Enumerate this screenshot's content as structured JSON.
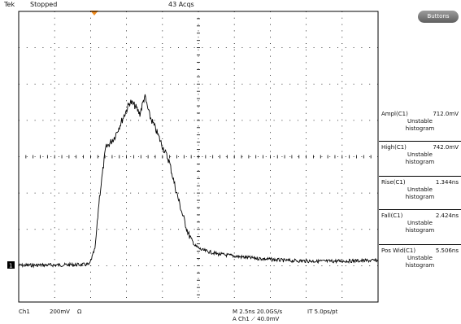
{
  "header": {
    "brand": "Tek",
    "status": "Stopped",
    "acquisitions": "43 Acqs",
    "buttons_label": "Buttons"
  },
  "colors": {
    "trigger_marker": "#f08a1c",
    "trace": "#000000",
    "graticule": "#000000"
  },
  "measurements": [
    {
      "label": "Ampl(C1)",
      "value": "712.0mV",
      "status": "Unstable",
      "note": "histogram"
    },
    {
      "label": "High(C1)",
      "value": "742.0mV",
      "status": "Unstable",
      "note": "histogram"
    },
    {
      "label": "Rise(C1)",
      "value": "1.344ns",
      "status": "Unstable",
      "note": "histogram"
    },
    {
      "label": "Fall(C1)",
      "value": "2.424ns",
      "status": "Unstable",
      "note": "histogram"
    },
    {
      "label": "Pos Wid(C1)",
      "value": "5.506ns",
      "status": "Unstable",
      "note": "histogram"
    }
  ],
  "footer": {
    "channel": "Ch1",
    "scale": "200mV",
    "coupling": "Ω",
    "timebase": "M 2.5ns 20.0GS/s",
    "interval": "IT 5.0ps/pt",
    "trigger": "A  Ch1  ⟋  40.0mV"
  },
  "channel_marker": "1"
}
